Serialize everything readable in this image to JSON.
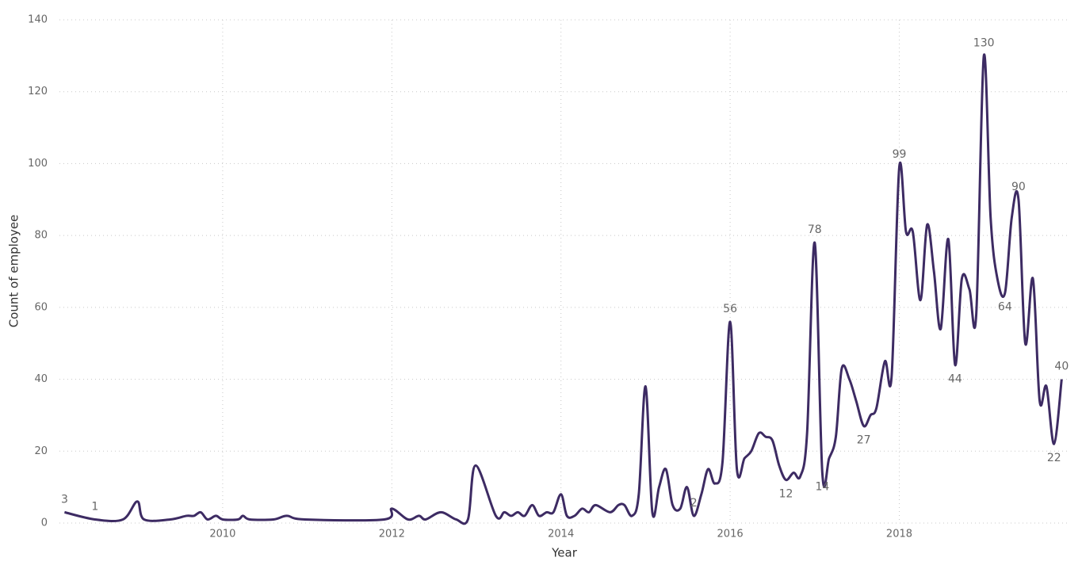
{
  "chart_data": {
    "type": "line",
    "y_label": "Count of employee",
    "x_label": "Year",
    "x": [
      2008.13,
      2008.49,
      2008.82,
      2008.99,
      2009.07,
      2009.38,
      2009.57,
      2009.66,
      2009.74,
      2009.82,
      2009.92,
      2010.0,
      2010.18,
      2010.24,
      2010.32,
      2010.6,
      2010.76,
      2010.97,
      2011.91,
      2012.0,
      2012.19,
      2012.32,
      2012.4,
      2012.58,
      2012.76,
      2012.9,
      2012.99,
      2013.23,
      2013.33,
      2013.41,
      2013.49,
      2013.57,
      2013.66,
      2013.74,
      2013.83,
      2013.91,
      2014.0,
      2014.07,
      2014.16,
      2014.25,
      2014.33,
      2014.41,
      2014.58,
      2014.68,
      2014.75,
      2014.84,
      2014.92,
      2015.0,
      2015.08,
      2015.16,
      2015.24,
      2015.32,
      2015.41,
      2015.49,
      2015.57,
      2015.66,
      2015.74,
      2015.82,
      2015.91,
      2016.0,
      2016.08,
      2016.17,
      2016.25,
      2016.34,
      2016.42,
      2016.5,
      2016.58,
      2016.66,
      2016.75,
      2016.83,
      2016.91,
      2017.0,
      2017.09,
      2017.17,
      2017.25,
      2017.32,
      2017.41,
      2017.49,
      2017.58,
      2017.66,
      2017.73,
      2017.83,
      2017.91,
      2018.0,
      2018.08,
      2018.16,
      2018.25,
      2018.33,
      2018.41,
      2018.49,
      2018.58,
      2018.66,
      2018.74,
      2018.83,
      2018.91,
      2019.0,
      2019.08,
      2019.16,
      2019.25,
      2019.33,
      2019.41,
      2019.49,
      2019.58,
      2019.66,
      2019.74,
      2019.83,
      2019.92
    ],
    "series": [
      {
        "name": "Count of employee",
        "color": "#3d2b63",
        "values": [
          3,
          1,
          1,
          6,
          1,
          1,
          2,
          2,
          3,
          1,
          2,
          1,
          1,
          2,
          1,
          1,
          2,
          1,
          1,
          4,
          1,
          2,
          1,
          3,
          1,
          1,
          16,
          2,
          3,
          2,
          3,
          2,
          5,
          2,
          3,
          3,
          8,
          2,
          2,
          4,
          3,
          5,
          3,
          5,
          5,
          2,
          8,
          38,
          3,
          10,
          15,
          5,
          4,
          10,
          2,
          8,
          15,
          11,
          17,
          56,
          15,
          18,
          20,
          25,
          24,
          23,
          16,
          12,
          14,
          13,
          25,
          78,
          14,
          18,
          24,
          43,
          40,
          34,
          27,
          30,
          32,
          45,
          41,
          99,
          81,
          81,
          62,
          83,
          70,
          54,
          79,
          44,
          68,
          65,
          58,
          130,
          85,
          68,
          64,
          85,
          90,
          50,
          68,
          34,
          38,
          22,
          40
        ],
        "value_labels": [
          "3",
          "1",
          null,
          null,
          null,
          null,
          null,
          null,
          null,
          null,
          null,
          null,
          null,
          null,
          null,
          null,
          null,
          null,
          null,
          null,
          null,
          null,
          null,
          null,
          null,
          null,
          null,
          null,
          null,
          null,
          null,
          null,
          null,
          null,
          null,
          null,
          null,
          null,
          null,
          null,
          null,
          null,
          null,
          null,
          null,
          null,
          null,
          null,
          null,
          null,
          null,
          null,
          null,
          null,
          "2",
          null,
          null,
          null,
          null,
          "56",
          null,
          null,
          null,
          null,
          null,
          null,
          null,
          "12",
          null,
          null,
          null,
          "78",
          "14",
          null,
          null,
          null,
          null,
          null,
          "27",
          null,
          null,
          null,
          null,
          "99",
          null,
          null,
          null,
          null,
          null,
          null,
          null,
          "44",
          null,
          null,
          null,
          "130",
          null,
          null,
          "64",
          null,
          "90",
          null,
          null,
          null,
          null,
          "22",
          "40"
        ]
      }
    ],
    "xlim": [
      2008.07,
      2020.02
    ],
    "xticks": [
      2010,
      2012,
      2014,
      2016,
      2018
    ],
    "ylim": [
      0,
      140
    ],
    "yticks": [
      0,
      20,
      40,
      60,
      80,
      100,
      120,
      140
    ],
    "grid": true
  }
}
